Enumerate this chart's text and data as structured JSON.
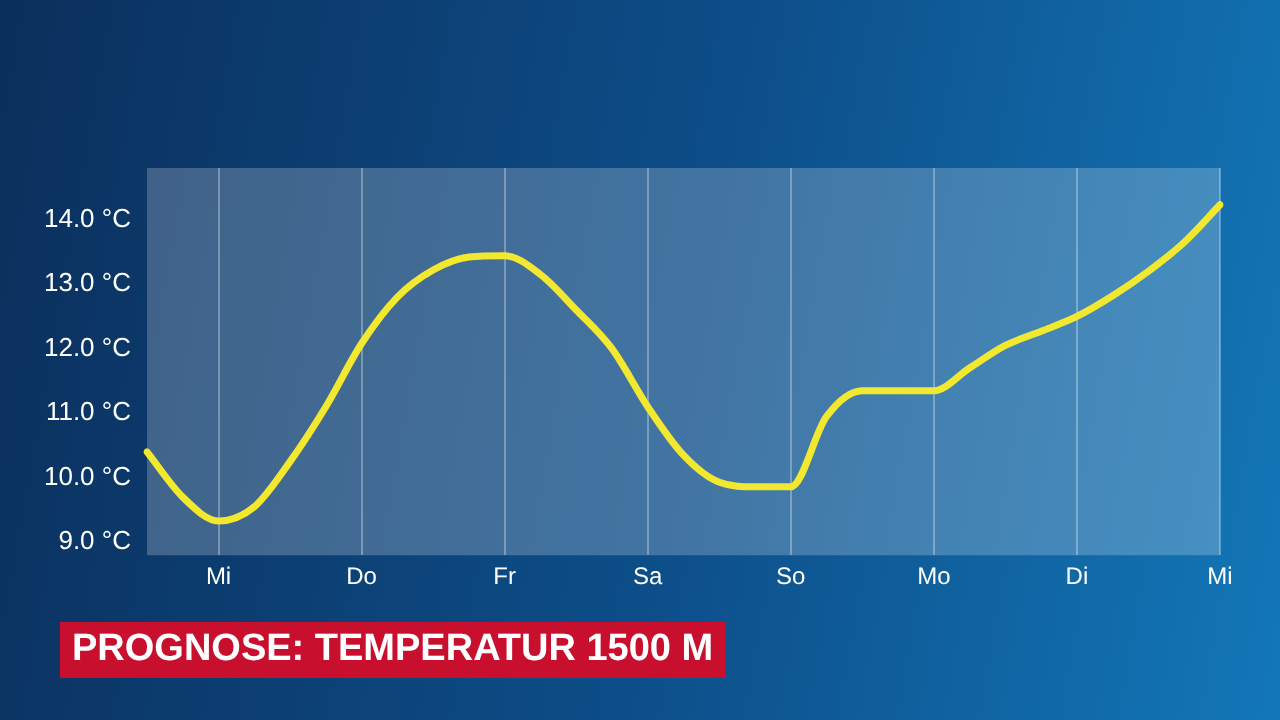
{
  "chart_data": {
    "type": "line",
    "title": "PROGNOSE: TEMPERATUR 1500 M",
    "categories": [
      null,
      null,
      "Mi",
      null,
      null,
      null,
      "Do",
      null,
      null,
      null,
      "Fr",
      null,
      null,
      null,
      "Sa",
      null,
      null,
      null,
      "So",
      null,
      null,
      null,
      "Mo",
      null,
      null,
      null,
      "Di",
      null,
      null,
      null,
      "Mi"
    ],
    "series": [
      {
        "color": "#f2e830",
        "values": [
          10.4,
          9.7,
          9.33,
          9.55,
          10.25,
          11.1,
          12.08,
          12.8,
          13.22,
          13.42,
          13.44,
          13.15,
          12.6,
          12.0,
          11.1,
          10.35,
          9.93,
          9.86,
          9.86,
          10.95,
          11.35,
          11.35,
          11.35,
          11.7,
          12.05,
          12.27,
          12.5,
          12.82,
          13.2,
          13.65,
          14.23
        ]
      }
    ],
    "ylim": [
      8.8,
      14.8
    ],
    "yticks": [
      {
        "value": 9,
        "label": "9.0 °C"
      },
      {
        "value": 10,
        "label": "10.0 °C"
      },
      {
        "value": 11,
        "label": "11.0 °C"
      },
      {
        "value": 12,
        "label": "12.0 °C"
      },
      {
        "value": 13,
        "label": "13.0 °C"
      },
      {
        "value": 14,
        "label": "14.0 °C"
      }
    ],
    "grid": "x",
    "legend": false,
    "marker": "none",
    "line_style": "solid"
  }
}
